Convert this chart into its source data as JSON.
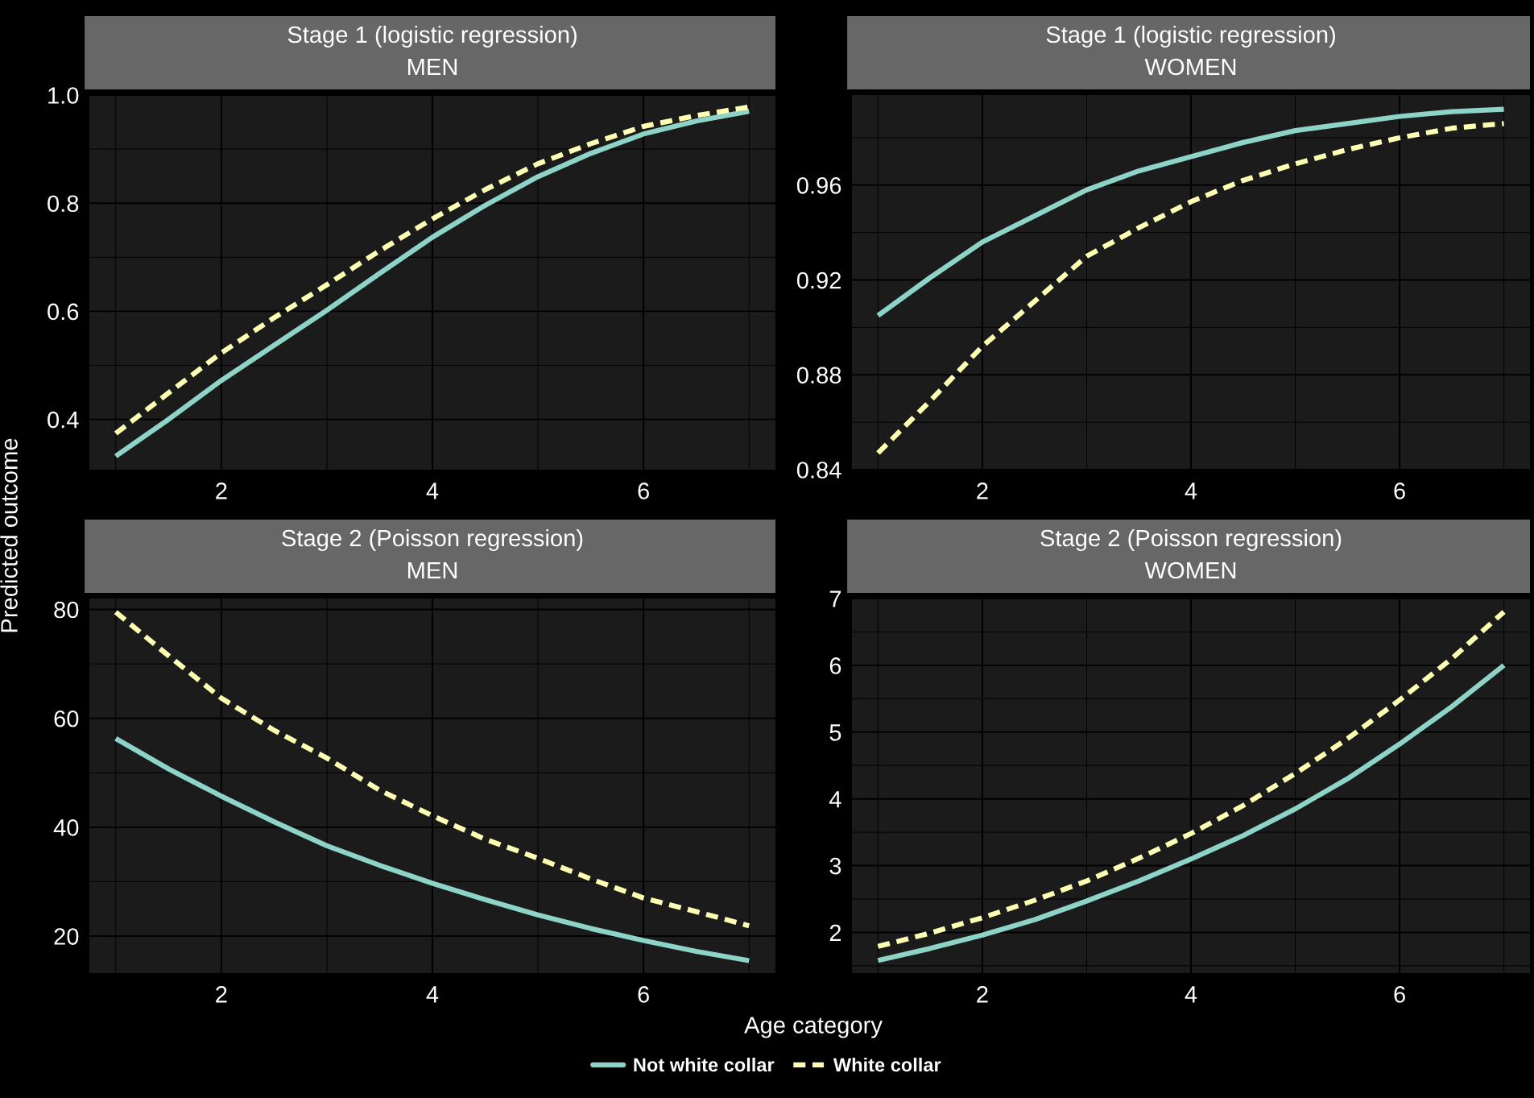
{
  "chart_data": [
    {
      "type": "line",
      "title": "Stage 1 (logistic regression)",
      "subtitle": "MEN",
      "ylabel": "Predicted outcome",
      "legend": "bottom",
      "grid": true,
      "x": [
        1,
        1.5,
        2,
        2.5,
        3,
        3.5,
        4,
        4.5,
        5,
        5.5,
        6,
        6.5,
        7
      ],
      "xlim": [
        0.75,
        7.25
      ],
      "xticks": [
        2,
        4,
        6
      ],
      "ylim": [
        0.307,
        1.0
      ],
      "yticks": [
        0.4,
        0.6,
        0.8,
        {
          "value": 1.0,
          "label": "1.0"
        }
      ],
      "series": [
        {
          "name": "Not white collar",
          "color": "#8dd3c7",
          "line_style": "solid",
          "values": [
            0.332,
            0.4,
            0.472,
            0.537,
            0.602,
            0.67,
            0.737,
            0.796,
            0.849,
            0.892,
            0.928,
            0.952,
            0.97
          ]
        },
        {
          "name": "White collar",
          "color": "#ffffb3",
          "line_style": "dashed",
          "values": [
            0.374,
            0.449,
            0.523,
            0.588,
            0.649,
            0.712,
            0.771,
            0.825,
            0.873,
            0.91,
            0.942,
            0.962,
            0.978
          ]
        }
      ]
    },
    {
      "type": "line",
      "title": "Stage 1 (logistic regression)",
      "subtitle": "WOMEN",
      "grid": true,
      "x": [
        1,
        1.5,
        2,
        2.5,
        3,
        3.5,
        4,
        4.5,
        5,
        5.5,
        6,
        6.5,
        7
      ],
      "xlim": [
        0.75,
        7.25
      ],
      "xticks": [
        2,
        4,
        6
      ],
      "ylim": [
        0.84,
        0.998
      ],
      "yticks": [
        0.84,
        0.88,
        0.92,
        0.96
      ],
      "series": [
        {
          "color": "#8dd3c7",
          "line_style": "solid",
          "values": [
            0.905,
            0.921,
            0.936,
            0.947,
            0.958,
            0.966,
            0.972,
            0.978,
            0.983,
            0.986,
            0.989,
            0.991,
            0.992
          ]
        },
        {
          "color": "#ffffb3",
          "line_style": "dashed",
          "values": [
            0.847,
            0.869,
            0.892,
            0.911,
            0.93,
            0.942,
            0.953,
            0.962,
            0.969,
            0.975,
            0.98,
            0.984,
            0.986
          ]
        }
      ]
    },
    {
      "type": "line",
      "title": "Stage 2 (Poisson regression)",
      "subtitle": "MEN",
      "xlabel": "Age category",
      "grid": true,
      "x": [
        1,
        1.5,
        2,
        2.5,
        3,
        3.5,
        4,
        4.5,
        5,
        5.5,
        6,
        6.5,
        7
      ],
      "xlim": [
        0.75,
        7.25
      ],
      "xticks": [
        2,
        4,
        6
      ],
      "ylim": [
        13.2,
        82.0
      ],
      "yticks": [
        20,
        40,
        60,
        80
      ],
      "series": [
        {
          "color": "#8dd3c7",
          "line_style": "solid",
          "values": [
            56.3,
            50.7,
            45.7,
            41.0,
            36.6,
            33.0,
            29.7,
            26.7,
            23.9,
            21.4,
            19.2,
            17.2,
            15.5
          ]
        },
        {
          "color": "#ffffb3",
          "line_style": "dashed",
          "values": [
            79.5,
            71.5,
            63.7,
            57.8,
            52.7,
            46.8,
            42.1,
            37.8,
            34.3,
            30.5,
            27.0,
            24.5,
            21.9
          ]
        }
      ]
    },
    {
      "type": "line",
      "title": "Stage 2 (Poisson regression)",
      "subtitle": "WOMEN",
      "grid": true,
      "x": [
        1,
        1.5,
        2,
        2.5,
        3,
        3.5,
        4,
        4.5,
        5,
        5.5,
        6,
        6.5,
        7
      ],
      "xlim": [
        0.75,
        7.25
      ],
      "xticks": [
        2,
        4,
        6
      ],
      "ylim": [
        1.39,
        7.0
      ],
      "yticks": [
        2,
        3,
        4,
        5,
        6,
        7
      ],
      "series": [
        {
          "color": "#8dd3c7",
          "line_style": "solid",
          "values": [
            1.58,
            1.76,
            1.96,
            2.19,
            2.47,
            2.77,
            3.1,
            3.45,
            3.85,
            4.3,
            4.82,
            5.38,
            6.0
          ]
        },
        {
          "color": "#ffffb3",
          "line_style": "dashed",
          "values": [
            1.79,
            1.99,
            2.22,
            2.48,
            2.77,
            3.11,
            3.48,
            3.9,
            4.38,
            4.9,
            5.48,
            6.1,
            6.8
          ]
        }
      ]
    }
  ]
}
